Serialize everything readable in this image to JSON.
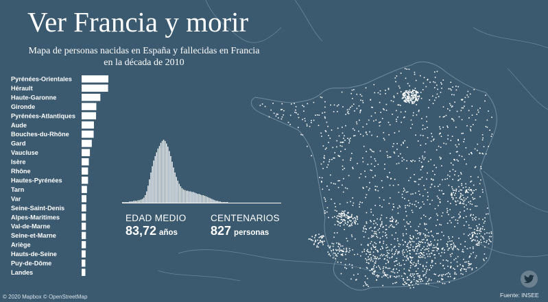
{
  "header": {
    "title": "Ver Francia y morir",
    "subtitle_line1": "Mapa de personas nacidas en España y fallecidas en Francia",
    "subtitle_line2": "en la década de 2010"
  },
  "stats": {
    "age_label": "EDAD MEDIO",
    "age_value": "83,72",
    "age_unit": "años",
    "centenarians_label": "CENTENARIOS",
    "centenarians_value": "827",
    "centenarians_unit": "personas"
  },
  "footer": {
    "attribution": "© 2020 Mapbox © OpenStreetMap",
    "source": "Fuente: INSEE"
  },
  "icons": {
    "share": "twitter-icon"
  },
  "colors": {
    "background": "#3b5a70",
    "marks": "#ffffff",
    "land_border": "#7f99aa"
  },
  "chart_data": [
    {
      "type": "bar",
      "orientation": "horizontal",
      "categories": [
        "Pyrénées-Orientales",
        "Hérault",
        "Haute-Garonne",
        "Gironde",
        "Pyrénées-Atlantiques",
        "Aude",
        "Bouches-du-Rhône",
        "Gard",
        "Vaucluse",
        "Isère",
        "Rhône",
        "Hautes-Pyrénées",
        "Tarn",
        "Var",
        "Seine-Saint-Denis",
        "Alpes-Maritimes",
        "Val-de-Marne",
        "Seine-et-Marne",
        "Ariège",
        "Hauts-de-Seine",
        "Puy-de-Dôme",
        "Landes"
      ],
      "values": [
        100,
        99,
        70,
        55,
        54,
        46,
        45,
        38,
        31,
        27,
        24,
        24,
        20,
        18,
        17,
        16,
        16,
        16,
        16,
        15,
        14,
        14
      ]
    },
    {
      "type": "bar",
      "values": [
        1,
        1,
        1,
        1,
        1,
        2,
        2,
        2,
        3,
        3,
        3,
        4,
        4,
        5,
        6,
        8,
        12,
        18,
        27,
        37,
        48,
        58,
        67,
        74,
        80,
        86,
        90,
        95,
        98,
        100,
        98,
        94,
        89,
        82,
        74,
        65,
        56,
        48,
        41,
        35,
        30,
        26,
        23,
        21,
        20,
        19,
        19,
        18,
        18,
        17,
        17,
        16,
        15,
        14,
        14,
        13,
        12,
        12,
        11,
        10,
        9,
        8,
        7,
        6,
        5,
        4,
        3,
        3,
        2,
        2,
        1,
        1,
        1,
        1,
        1
      ]
    }
  ]
}
